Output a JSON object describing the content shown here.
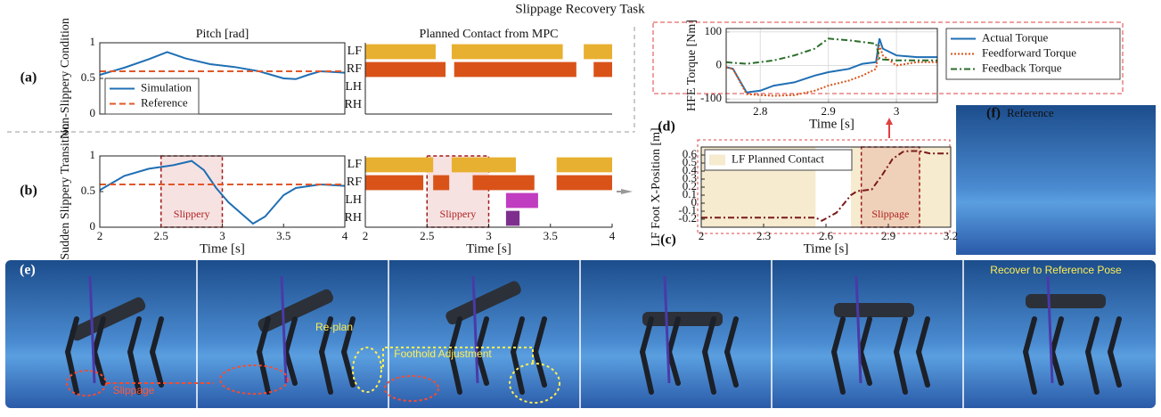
{
  "figure": {
    "title": "Slippage Recovery Task",
    "panel_a": "(a)",
    "panel_b": "(b)",
    "panel_c": "(c)",
    "panel_d": "(d)",
    "panel_e": "(e)",
    "panel_f": "(f)",
    "reference": "Reference",
    "recover": "Recover to Reference Pose",
    "slippage": "Slippage",
    "replan": "Re-plan",
    "foothold": "Foothold Adjustment"
  },
  "chart_data": [
    {
      "type": "line",
      "title": "Pitch [rad]",
      "ylabel": "Non-Slippery Condition",
      "xlim": [
        2,
        4
      ],
      "ylim": [
        0,
        1
      ],
      "yticks": [
        0,
        0.5,
        1
      ],
      "legend": "lower left",
      "x": [
        2,
        2.2,
        2.4,
        2.55,
        2.7,
        2.9,
        3.1,
        3.3,
        3.5,
        3.6,
        3.7,
        3.8,
        4
      ],
      "series": [
        {
          "name": "Simulation",
          "color": "#1f6fb4",
          "style": "solid",
          "values": [
            0.55,
            0.65,
            0.77,
            0.87,
            0.78,
            0.7,
            0.66,
            0.6,
            0.5,
            0.49,
            0.55,
            0.6,
            0.58
          ]
        },
        {
          "name": "Reference",
          "color": "#e0582a",
          "style": "dashed",
          "values": [
            0.6,
            0.6,
            0.6,
            0.6,
            0.6,
            0.6,
            0.6,
            0.6,
            0.6,
            0.6,
            0.6,
            0.6,
            0.6
          ]
        }
      ]
    },
    {
      "type": "gantt",
      "title": "Planned Contact from MPC",
      "xlim": [
        2,
        4
      ],
      "rows": [
        {
          "name": "LF",
          "color": "#e8b030",
          "segments": [
            [
              2,
              2.57
            ],
            [
              2.7,
              3.6
            ],
            [
              3.77,
              4
            ]
          ]
        },
        {
          "name": "RF",
          "color": "#d95319",
          "segments": [
            [
              2,
              2.65
            ],
            [
              2.72,
              3.71
            ],
            [
              3.85,
              4
            ]
          ]
        },
        {
          "name": "LH",
          "color": "#c03cc0",
          "segments": []
        },
        {
          "name": "RH",
          "color": "#7e2f8e",
          "segments": []
        }
      ]
    },
    {
      "type": "line",
      "ylabel": "Sudden Slippery Transition",
      "xlabel": "Time [s]",
      "xlim": [
        2,
        4
      ],
      "ylim": [
        0,
        1
      ],
      "xticks": [
        2,
        2.5,
        3,
        3.5,
        4
      ],
      "yticks": [
        0,
        0.5,
        1
      ],
      "x": [
        2,
        2.2,
        2.4,
        2.6,
        2.75,
        2.85,
        2.95,
        3.05,
        3.15,
        3.25,
        3.35,
        3.5,
        3.6,
        3.8,
        4
      ],
      "series": [
        {
          "color": "#1f6fb4",
          "style": "solid",
          "values": [
            0.52,
            0.72,
            0.82,
            0.87,
            0.93,
            0.8,
            0.55,
            0.35,
            0.2,
            0.05,
            0.15,
            0.45,
            0.55,
            0.6,
            0.58
          ]
        },
        {
          "color": "#e0582a",
          "style": "dashed",
          "values": [
            0.6,
            0.6,
            0.6,
            0.6,
            0.6,
            0.6,
            0.6,
            0.6,
            0.6,
            0.6,
            0.6,
            0.6,
            0.6,
            0.6,
            0.6
          ]
        }
      ],
      "annotations": [
        {
          "text": "Slippery",
          "x": [
            2.5,
            3
          ]
        }
      ]
    },
    {
      "type": "gantt",
      "xlabel": "Time [s]",
      "xlim": [
        2,
        4
      ],
      "xticks": [
        2,
        2.5,
        3,
        3.5,
        4
      ],
      "rows": [
        {
          "name": "LF",
          "color": "#e8b030",
          "segments": [
            [
              2,
              2.55
            ],
            [
              2.7,
              3.22
            ],
            [
              3.55,
              4
            ]
          ]
        },
        {
          "name": "RF",
          "color": "#d95319",
          "segments": [
            [
              2,
              2.47
            ],
            [
              2.55,
              2.68
            ],
            [
              2.87,
              3.37
            ],
            [
              3.55,
              4
            ]
          ]
        },
        {
          "name": "LH",
          "color": "#c03cc0",
          "segments": [
            [
              3.14,
              3.4
            ]
          ]
        },
        {
          "name": "RH",
          "color": "#7e2f8e",
          "segments": [
            [
              3.14,
              3.25
            ]
          ]
        }
      ],
      "annotations": [
        {
          "text": "Slippery",
          "x": [
            2.5,
            3
          ]
        }
      ]
    },
    {
      "type": "line",
      "ylabel": "HFE Torque [Nm]",
      "xlabel": "Time [s]",
      "xlim": [
        2.75,
        3.06
      ],
      "ylim": [
        -110,
        110
      ],
      "xticks": [
        2.8,
        2.9,
        3
      ],
      "yticks": [
        -100,
        0,
        100
      ],
      "grid": true,
      "legend": "right",
      "x": [
        2.75,
        2.76,
        2.78,
        2.8,
        2.82,
        2.85,
        2.88,
        2.9,
        2.93,
        2.95,
        2.97,
        2.975,
        2.98,
        3,
        3.03,
        3.06
      ],
      "series": [
        {
          "name": "Actual Torque",
          "color": "#1f6fb4",
          "style": "solid",
          "values": [
            -5,
            -10,
            -80,
            -75,
            -60,
            -50,
            -30,
            -20,
            -10,
            5,
            10,
            80,
            50,
            30,
            25,
            25
          ]
        },
        {
          "name": "Feedforward Torque",
          "color": "#d95319",
          "style": "dotted",
          "values": [
            -5,
            -10,
            -85,
            -88,
            -90,
            -88,
            -75,
            -60,
            -45,
            -30,
            -10,
            60,
            30,
            0,
            10,
            10
          ]
        },
        {
          "name": "Feedback Torque",
          "color": "#2a6e2a",
          "style": "dashdot",
          "values": [
            10,
            8,
            5,
            10,
            15,
            30,
            50,
            80,
            75,
            70,
            65,
            20,
            18,
            15,
            15,
            15
          ]
        }
      ]
    },
    {
      "type": "line",
      "ylabel": "LF Foot X-Position [m]",
      "xlabel": "Time [s]",
      "xlim": [
        2,
        3.2
      ],
      "ylim": [
        -0.3,
        0.7
      ],
      "xticks": [
        2,
        2.3,
        2.6,
        2.9,
        3.2
      ],
      "yticks": [
        -0.2,
        -0.1,
        0,
        0.1,
        0.2,
        0.3,
        0.4,
        0.5,
        0.6
      ],
      "legend": "upper left",
      "shaded": {
        "name": "LF Planned Contact",
        "color": "#f6ebcf",
        "spans": [
          [
            2,
            2.55
          ],
          [
            2.72,
            3.2
          ]
        ]
      },
      "x": [
        2,
        2.3,
        2.55,
        2.58,
        2.65,
        2.72,
        2.75,
        2.82,
        2.87,
        2.92,
        2.97,
        3,
        3.05,
        3.1,
        3.2
      ],
      "series": [
        {
          "color": "#7a1a1a",
          "style": "dashdot",
          "values": [
            -0.18,
            -0.18,
            -0.18,
            -0.22,
            -0.12,
            0.1,
            0.15,
            0.17,
            0.35,
            0.55,
            0.64,
            0.65,
            0.65,
            0.62,
            0.62
          ]
        }
      ],
      "annotations": [
        {
          "text": "Slippage",
          "x": [
            2.77,
            3.05
          ]
        }
      ]
    }
  ]
}
